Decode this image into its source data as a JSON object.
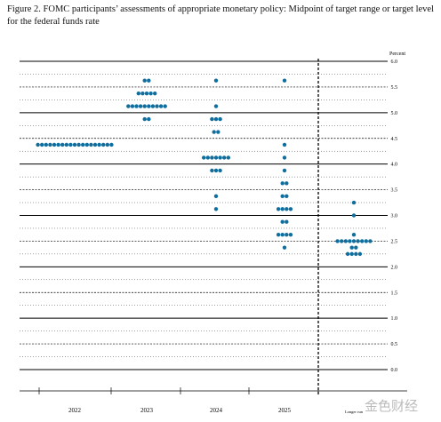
{
  "chart_data": {
    "type": "dot",
    "title": "Figure 2.  FOMC participants’ assessments of appropriate monetary policy: Midpoint of target range or target level for the federal funds rate",
    "y_label": "Percent",
    "categories": [
      "2022",
      "2023",
      "2024",
      "2025",
      "Longer run"
    ],
    "values": [
      [
        4.375,
        4.375,
        4.375,
        4.375,
        4.375,
        4.375,
        4.375,
        4.375,
        4.375,
        4.375,
        4.375,
        4.375,
        4.375,
        4.375,
        4.375,
        4.375,
        4.375,
        4.375,
        4.375
      ],
      [
        5.625,
        5.625,
        5.375,
        5.375,
        5.375,
        5.375,
        5.375,
        5.125,
        5.125,
        5.125,
        5.125,
        5.125,
        5.125,
        5.125,
        5.125,
        5.125,
        5.125,
        4.875,
        4.875
      ],
      [
        5.625,
        5.125,
        4.875,
        4.875,
        4.875,
        4.625,
        4.625,
        4.125,
        4.125,
        4.125,
        4.125,
        4.125,
        4.125,
        4.125,
        3.875,
        3.875,
        3.875,
        3.375,
        3.125
      ],
      [
        5.625,
        4.375,
        4.125,
        3.875,
        3.625,
        3.625,
        3.375,
        3.375,
        3.125,
        3.125,
        3.125,
        3.125,
        2.875,
        2.875,
        2.625,
        2.625,
        2.625,
        2.625,
        2.375
      ],
      [
        3.25,
        3.0,
        2.625,
        2.5,
        2.5,
        2.5,
        2.5,
        2.5,
        2.5,
        2.5,
        2.5,
        2.5,
        2.375,
        2.375,
        2.25,
        2.25,
        2.25,
        2.25
      ]
    ],
    "color": "#0f6e9e",
    "ylim": [
      0,
      6
    ],
    "yticks": [
      {
        "value": 0,
        "label": "0.0"
      },
      {
        "value": 0.5,
        "label": "0.5"
      },
      {
        "value": 1,
        "label": "1.0"
      },
      {
        "value": 1.5,
        "label": "1.5"
      },
      {
        "value": 2,
        "label": "2.0"
      },
      {
        "value": 2.5,
        "label": "2.5"
      },
      {
        "value": 3,
        "label": "3.0"
      },
      {
        "value": 3.5,
        "label": "3.5"
      },
      {
        "value": 4,
        "label": "4.0"
      },
      {
        "value": 4.5,
        "label": "4.5"
      },
      {
        "value": 5,
        "label": "5.0"
      },
      {
        "value": 5.5,
        "label": "5.5"
      },
      {
        "value": 6,
        "label": "6.0"
      }
    ],
    "grid": true,
    "watermark": "金色财经"
  }
}
